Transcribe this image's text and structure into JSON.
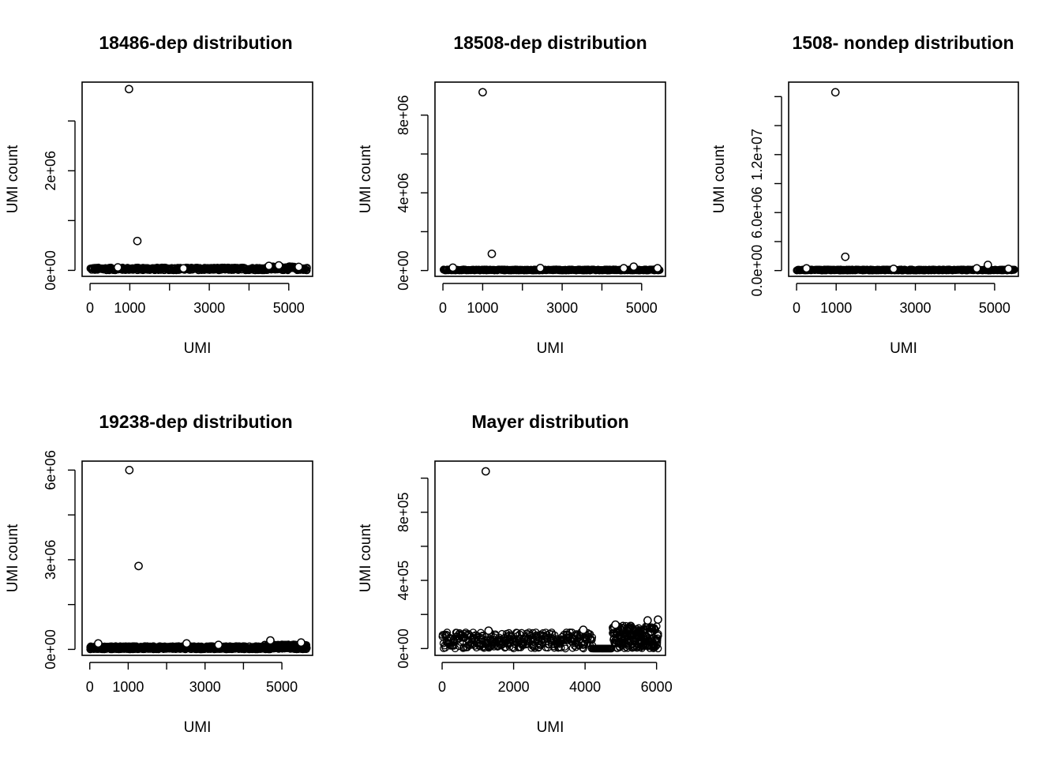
{
  "chart_data": [
    {
      "type": "scatter",
      "title": "18486-dep distribution",
      "xlabel": "UMI",
      "ylabel": "UMI count",
      "xlim": [
        -200,
        5600
      ],
      "ylim": [
        -120000,
        3780000
      ],
      "x_ticks": [
        0,
        1000,
        2000,
        3000,
        4000,
        5000
      ],
      "x_tick_labels": [
        "0",
        "1000",
        "",
        "3000",
        "",
        "5000"
      ],
      "y_ticks": [
        0,
        1000000,
        2000000,
        3000000
      ],
      "y_tick_labels": [
        "0e+00",
        "",
        "2e+06",
        ""
      ],
      "baseline": {
        "x_start": 0,
        "x_end": 5450,
        "max_value": 60000,
        "bumps": [
          [
            4450,
            5150,
            85000
          ]
        ]
      },
      "points": [
        {
          "x": 980,
          "y": 3640000
        },
        {
          "x": 1190,
          "y": 590000
        },
        {
          "x": 700,
          "y": 60000
        },
        {
          "x": 2350,
          "y": 40000
        },
        {
          "x": 4500,
          "y": 90000
        },
        {
          "x": 4750,
          "y": 100000
        },
        {
          "x": 5250,
          "y": 70000
        }
      ]
    },
    {
      "type": "scatter",
      "title": "18508-dep distribution",
      "xlabel": "UMI",
      "ylabel": "UMI count",
      "xlim": [
        -200,
        5600
      ],
      "ylim": [
        -300000,
        9700000
      ],
      "x_ticks": [
        0,
        1000,
        2000,
        3000,
        4000,
        5000
      ],
      "x_tick_labels": [
        "0",
        "1000",
        "",
        "3000",
        "",
        "5000"
      ],
      "y_ticks": [
        0,
        2000000,
        4000000,
        6000000,
        8000000
      ],
      "y_tick_labels": [
        "0e+00",
        "",
        "4e+06",
        "",
        "8e+06"
      ],
      "baseline": {
        "x_start": 0,
        "x_end": 5450,
        "max_value": 60000,
        "bumps": []
      },
      "points": [
        {
          "x": 1000,
          "y": 9180000
        },
        {
          "x": 1230,
          "y": 860000
        },
        {
          "x": 250,
          "y": 150000
        },
        {
          "x": 2450,
          "y": 130000
        },
        {
          "x": 4550,
          "y": 120000
        },
        {
          "x": 4800,
          "y": 200000
        },
        {
          "x": 5400,
          "y": 120000
        }
      ]
    },
    {
      "type": "scatter",
      "title": "1508- nondep distribution",
      "xlabel": "UMI",
      "ylabel": "UMI count",
      "xlim": [
        -200,
        5600
      ],
      "ylim": [
        -400000,
        13000000
      ],
      "x_ticks": [
        0,
        1000,
        2000,
        3000,
        4000,
        5000
      ],
      "x_tick_labels": [
        "0",
        "1000",
        "",
        "3000",
        "",
        "5000"
      ],
      "y_ticks": [
        0,
        2000000,
        4000000,
        6000000,
        8000000,
        10000000,
        12000000
      ],
      "y_tick_labels": [
        "0.0e+00",
        "",
        "6.0e+06",
        "",
        "1.2e+07",
        "",
        ""
      ],
      "y_tick_label_values": [
        0,
        6000000,
        12000000
      ],
      "baseline": {
        "x_start": 0,
        "x_end": 5500,
        "max_value": 80000,
        "bumps": []
      },
      "points": [
        {
          "x": 980,
          "y": 12300000
        },
        {
          "x": 1230,
          "y": 950000
        },
        {
          "x": 250,
          "y": 150000
        },
        {
          "x": 2450,
          "y": 120000
        },
        {
          "x": 4550,
          "y": 150000
        },
        {
          "x": 4830,
          "y": 390000
        },
        {
          "x": 5350,
          "y": 120000
        }
      ]
    },
    {
      "type": "scatter",
      "title": "19238-dep distribution",
      "xlabel": "UMI",
      "ylabel": "UMI count",
      "xlim": [
        -200,
        5800
      ],
      "ylim": [
        -200000,
        6300000
      ],
      "x_ticks": [
        0,
        1000,
        2000,
        3000,
        4000,
        5000
      ],
      "x_tick_labels": [
        "0",
        "1000",
        "",
        "3000",
        "",
        "5000"
      ],
      "y_ticks": [
        0,
        1500000,
        3000000,
        4500000,
        6000000
      ],
      "y_tick_labels": [
        "0e+00",
        "",
        "3e+06",
        "",
        "6e+06"
      ],
      "baseline": {
        "x_start": 0,
        "x_end": 5650,
        "max_value": 110000,
        "bumps": [
          [
            4500,
            5650,
            170000
          ]
        ]
      },
      "points": [
        {
          "x": 1030,
          "y": 6000000
        },
        {
          "x": 1270,
          "y": 2790000
        },
        {
          "x": 220,
          "y": 200000
        },
        {
          "x": 2520,
          "y": 200000
        },
        {
          "x": 3350,
          "y": 150000
        },
        {
          "x": 4700,
          "y": 300000
        },
        {
          "x": 5500,
          "y": 230000
        }
      ]
    },
    {
      "type": "scatter",
      "title": "Mayer distribution",
      "xlabel": "UMI",
      "ylabel": "UMI count",
      "xlim": [
        -200,
        6250
      ],
      "ylim": [
        -40000,
        1100000
      ],
      "x_ticks": [
        0,
        2000,
        4000,
        6000
      ],
      "x_tick_labels": [
        "0",
        "2000",
        "4000",
        "6000"
      ],
      "y_ticks": [
        0,
        200000,
        400000,
        600000,
        800000,
        1000000
      ],
      "y_tick_labels": [
        "0e+00",
        "",
        "4e+05",
        "",
        "8e+05",
        ""
      ],
      "y_tick_label_values": [
        0,
        400000,
        800000
      ],
      "baseline": {
        "x_start": 0,
        "x_end": 6050,
        "max_value": 75000,
        "gap": [
          4200,
          4750
        ],
        "bumps": [
          [
            0,
            4200,
            95000
          ],
          [
            4750,
            6050,
            135000
          ]
        ]
      },
      "points": [
        {
          "x": 1220,
          "y": 1040000
        },
        {
          "x": 5750,
          "y": 165000
        },
        {
          "x": 6040,
          "y": 170000
        },
        {
          "x": 1300,
          "y": 105000
        },
        {
          "x": 3950,
          "y": 110000
        },
        {
          "x": 4850,
          "y": 140000
        }
      ]
    }
  ]
}
